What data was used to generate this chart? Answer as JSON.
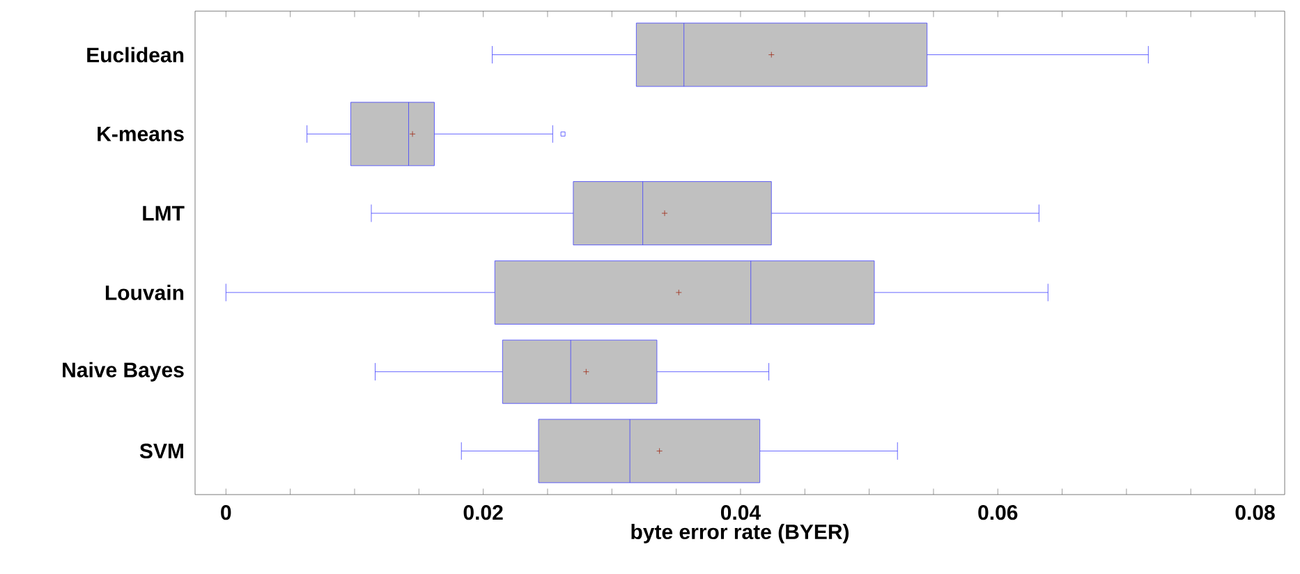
{
  "chart_data": {
    "type": "box",
    "orientation": "horizontal",
    "xlabel": "byte error rate (BYER)",
    "categories": [
      "Euclidean",
      "K-means",
      "LMT",
      "Louvain",
      "Naive Bayes",
      "SVM"
    ],
    "xlim": [
      -0.0024,
      0.0823
    ],
    "xticks": [
      0,
      {
        "value": 0.005,
        "label": null
      },
      {
        "value": 0.01,
        "label": null
      },
      {
        "value": 0.015,
        "label": null
      },
      0.02,
      {
        "value": 0.025,
        "label": null
      },
      {
        "value": 0.03,
        "label": null
      },
      {
        "value": 0.035,
        "label": null
      },
      0.04,
      {
        "value": 0.045,
        "label": null
      },
      {
        "value": 0.05,
        "label": null
      },
      {
        "value": 0.055,
        "label": null
      },
      0.06,
      {
        "value": 0.065,
        "label": null
      },
      {
        "value": 0.07,
        "label": null
      },
      {
        "value": 0.075,
        "label": null
      },
      0.08
    ],
    "series": [
      {
        "color": "#4040ff",
        "boxes": [
          {
            "low": 0.0207,
            "q1": 0.0319,
            "median": 0.0356,
            "q3": 0.0545,
            "high": 0.0717,
            "mean": 0.0424
          },
          {
            "low": 0.0063,
            "q1": 0.0097,
            "median": 0.0142,
            "q3": 0.0162,
            "high": 0.0254,
            "mean": 0.0145,
            "outliers": [
              0.0262
            ]
          },
          {
            "low": 0.0113,
            "q1": 0.027,
            "median": 0.0324,
            "q3": 0.0424,
            "high": 0.0632,
            "mean": 0.0341
          },
          {
            "low": 0,
            "q1": 0.0209,
            "median": 0.0408,
            "q3": 0.0504,
            "high": 0.0639,
            "mean": 0.0352
          },
          {
            "low": 0.0116,
            "q1": 0.0215,
            "median": 0.0268,
            "q3": 0.0335,
            "high": 0.0422,
            "mean": 0.028
          },
          {
            "low": 0.0183,
            "q1": 0.0243,
            "median": 0.0314,
            "q3": 0.0415,
            "high": 0.0522,
            "mean": 0.0337
          }
        ]
      }
    ]
  }
}
